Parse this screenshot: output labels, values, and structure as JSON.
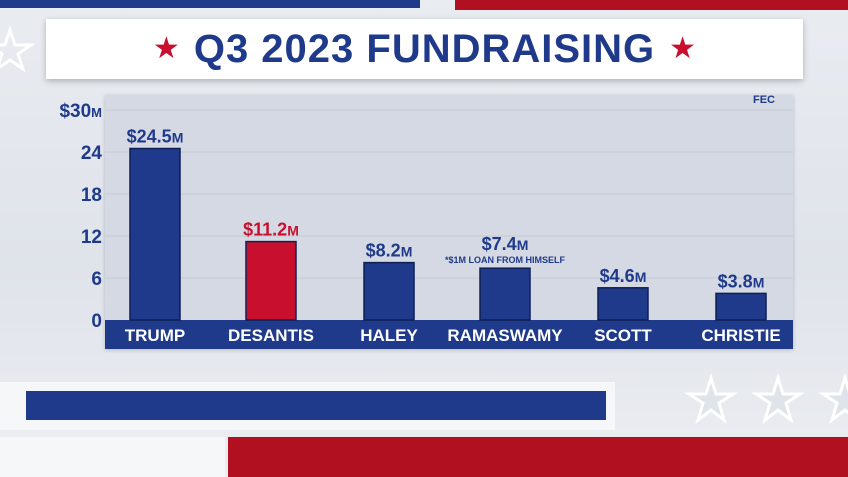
{
  "header": {
    "title": "Q3 2023 FUNDRAISING",
    "star_left": "★",
    "star_right": "★"
  },
  "source": "FEC",
  "colors": {
    "navy": "#1f3a8a",
    "red": "#c8102e",
    "panel": "#d5d9e3"
  },
  "chart_data": {
    "type": "bar",
    "title": "Q3 2023 FUNDRAISING",
    "categories": [
      "TRUMP",
      "DESANTIS",
      "HALEY",
      "RAMASWAMY",
      "SCOTT",
      "CHRISTIE"
    ],
    "values": [
      24.5,
      11.2,
      8.2,
      7.4,
      4.6,
      3.8
    ],
    "value_labels": [
      "$24.5M",
      "$11.2M",
      "$8.2M",
      "$7.4M",
      "$4.6M",
      "$3.8M"
    ],
    "highlight_category": "DESANTIS",
    "annotations": [
      {
        "category": "RAMASWAMY",
        "text": "*$1M LOAN FROM HIMSELF"
      }
    ],
    "y_ticks": [
      0,
      6,
      12,
      18,
      24,
      30
    ],
    "y_tick_labels": [
      "0",
      "6",
      "12",
      "18",
      "24",
      "$30M"
    ],
    "ylim": [
      0,
      30
    ],
    "xlabel": "",
    "ylabel": "",
    "grid": true,
    "legend": "none"
  }
}
